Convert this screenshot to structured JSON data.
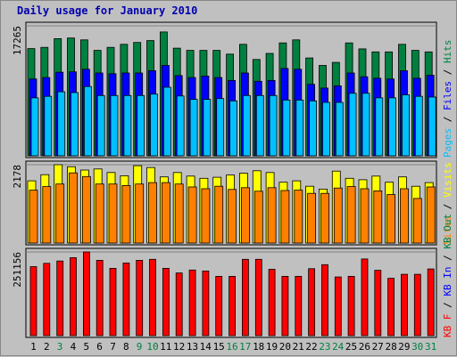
{
  "title": "Daily usage for January 2010",
  "colors": {
    "hits": "#008040",
    "files": "#0000ff",
    "pages": "#00c0ff",
    "visits": "#ffff00",
    "sites": "#ff8000",
    "kbin": "#ff0000",
    "panel_bg": "#c0c0c0",
    "weekend_label": "#008040"
  },
  "chart_data": [
    {
      "type": "bar",
      "categories": [
        "1",
        "2",
        "3",
        "4",
        "5",
        "6",
        "7",
        "8",
        "9",
        "10",
        "11",
        "12",
        "13",
        "14",
        "15",
        "16",
        "17",
        "18",
        "19",
        "20",
        "21",
        "22",
        "23",
        "24",
        "25",
        "26",
        "27",
        "28",
        "29",
        "30",
        "31"
      ],
      "weekend_days": [
        "3",
        "9",
        "10",
        "16",
        "17",
        "23",
        "24",
        "30",
        "31"
      ],
      "ymax_label": "17265",
      "ylim": [
        0,
        17265
      ],
      "right_labels": [
        "Pages",
        "Files",
        "Hits"
      ],
      "series": [
        {
          "name": "Hits",
          "values": [
            14240,
            14400,
            15560,
            15650,
            15400,
            14000,
            14400,
            14800,
            15050,
            15300,
            16450,
            14300,
            14000,
            14000,
            14000,
            13500,
            14800,
            12800,
            13600,
            15000,
            15400,
            13000,
            12000,
            12400,
            15000,
            14200,
            13800,
            13800,
            14800,
            14000,
            13800
          ]
        },
        {
          "name": "Files",
          "values": [
            10200,
            10400,
            11100,
            11150,
            11500,
            11000,
            10900,
            11000,
            11000,
            11300,
            12000,
            10650,
            10400,
            10600,
            10400,
            10000,
            11000,
            9900,
            10000,
            11600,
            11500,
            9500,
            9000,
            9300,
            11000,
            10500,
            10300,
            10200,
            11300,
            10300,
            10700
          ]
        },
        {
          "name": "Pages",
          "values": [
            7700,
            7900,
            8500,
            8400,
            9200,
            8000,
            8000,
            8000,
            8000,
            8200,
            9100,
            7950,
            7500,
            7500,
            7600,
            7300,
            8000,
            8000,
            8000,
            7400,
            7400,
            7300,
            7100,
            7100,
            8300,
            8300,
            7700,
            7700,
            8100,
            7900,
            7800
          ]
        }
      ]
    },
    {
      "type": "bar",
      "categories": [
        "1",
        "2",
        "3",
        "4",
        "5",
        "6",
        "7",
        "8",
        "9",
        "10",
        "11",
        "12",
        "13",
        "14",
        "15",
        "16",
        "17",
        "18",
        "19",
        "20",
        "21",
        "22",
        "23",
        "24",
        "25",
        "26",
        "27",
        "28",
        "29",
        "30",
        "31"
      ],
      "ymax_label": "2178",
      "ylim": [
        0,
        2178
      ],
      "right_labels": [
        "Sites",
        "Visits"
      ],
      "series": [
        {
          "name": "Visits",
          "values": [
            1730,
            1900,
            2178,
            2120,
            2030,
            2060,
            1960,
            1870,
            2150,
            2100,
            1840,
            1960,
            1860,
            1800,
            1830,
            1890,
            1940,
            2010,
            1960,
            1690,
            1730,
            1580,
            1500,
            2000,
            1800,
            1760,
            1860,
            1690,
            1840,
            1580,
            1680
          ]
        },
        {
          "name": "Sites",
          "values": [
            1470,
            1570,
            1640,
            1950,
            1850,
            1640,
            1640,
            1600,
            1640,
            1680,
            1680,
            1640,
            1560,
            1510,
            1580,
            1490,
            1540,
            1440,
            1540,
            1460,
            1470,
            1380,
            1380,
            1530,
            1570,
            1510,
            1450,
            1350,
            1510,
            1240,
            1560
          ]
        }
      ]
    },
    {
      "type": "bar",
      "categories": [
        "1",
        "2",
        "3",
        "4",
        "5",
        "6",
        "7",
        "8",
        "9",
        "10",
        "11",
        "12",
        "13",
        "14",
        "15",
        "16",
        "17",
        "18",
        "19",
        "20",
        "21",
        "22",
        "23",
        "24",
        "25",
        "26",
        "27",
        "28",
        "29",
        "30",
        "31"
      ],
      "ymax_label": "251156",
      "ylim": [
        0,
        251156
      ],
      "right_labels": [
        "KB F",
        "KB In",
        "KB Out"
      ],
      "series": [
        {
          "name": "KB In",
          "values": [
            207000,
            217000,
            224000,
            234000,
            251156,
            226000,
            202000,
            218000,
            226000,
            229000,
            202000,
            188000,
            197000,
            194000,
            178000,
            178000,
            229000,
            229000,
            199000,
            178000,
            178000,
            201000,
            213000,
            176000,
            178000,
            230000,
            196000,
            172000,
            184000,
            184000,
            200000
          ]
        }
      ]
    }
  ]
}
